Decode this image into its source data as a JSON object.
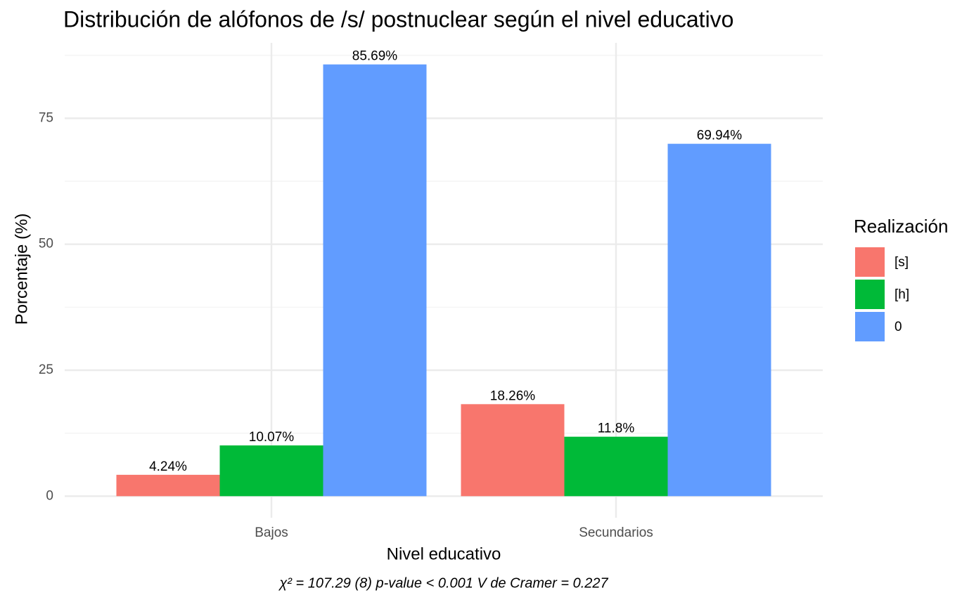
{
  "chart_data": {
    "type": "bar",
    "title": "Distribución de alófonos de /s/ postnuclear según el nivel educativo",
    "x_label": "Nivel educativo",
    "y_label": "Porcentaje (%)",
    "caption": "χ² = 107.29 (8) p-value < 0.001 V de Cramer = 0.227",
    "legend_title": "Realización",
    "legend": "right",
    "grid": true,
    "categories": [
      "Bajos",
      "Secundarios"
    ],
    "series": [
      {
        "name": "[s]",
        "color": "#F8766D",
        "values": [
          4.24,
          18.26
        ],
        "value_labels": [
          "4.24%",
          "18.26%"
        ]
      },
      {
        "name": "[h]",
        "color": "#00BA38",
        "values": [
          10.07,
          11.8
        ],
        "value_labels": [
          "10.07%",
          "11.8%"
        ]
      },
      {
        "name": "0",
        "color": "#619CFF",
        "values": [
          85.69,
          69.94
        ],
        "value_labels": [
          "85.69%",
          "69.94%"
        ]
      }
    ],
    "ylim": [
      -4.28,
      89.97
    ],
    "yticks": [
      0,
      25,
      50,
      75
    ]
  }
}
